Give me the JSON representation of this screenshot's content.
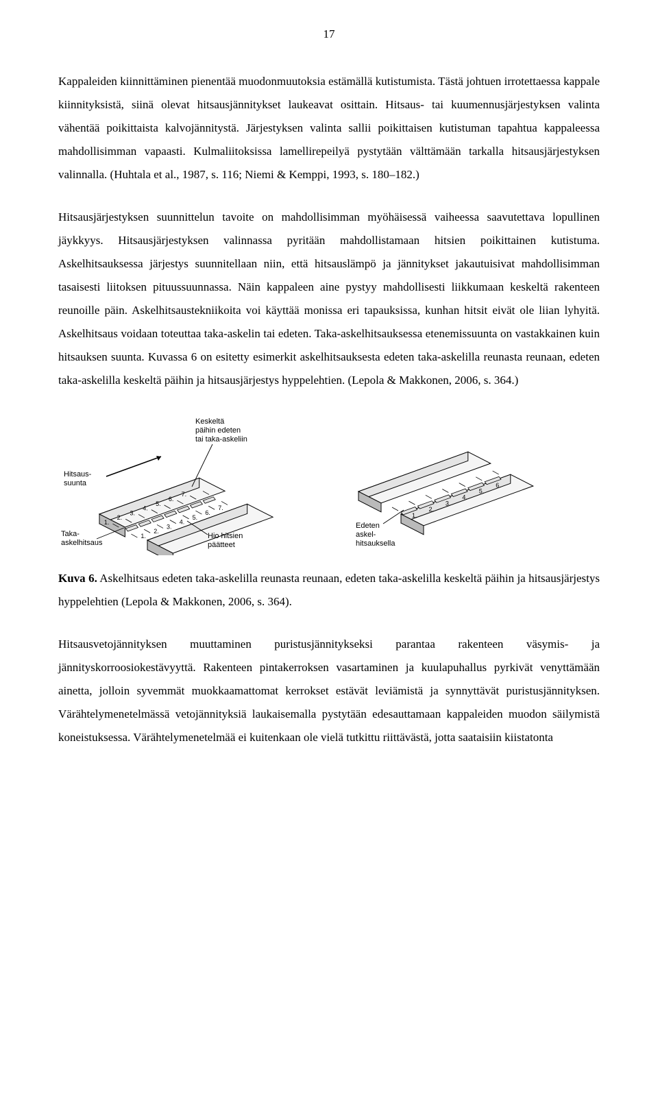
{
  "pageNumber": "17",
  "para1": "Kappaleiden kiinnittäminen pienentää muodonmuutoksia estämällä kutistumista. Tästä johtuen irrotettaessa kappale kiinnityksistä, siinä olevat hitsausjännitykset laukeavat osittain. Hitsaus- tai kuumennusjärjestyksen valinta vähentää poikittaista kalvojännitystä. Järjestyksen valinta sallii poikittaisen kutistuman tapahtua kappaleessa mahdollisimman vapaasti. Kulmaliitoksissa lamellirepeilyä pystytään välttämään tarkalla hitsausjärjestyksen valinnalla. (Huhtala et al., 1987, s. 116; Niemi & Kemppi, 1993, s. 180–182.)",
  "para2": "Hitsausjärjestyksen suunnittelun tavoite on mahdollisimman myöhäisessä vaiheessa saavutettava lopullinen jäykkyys. Hitsausjärjestyksen valinnassa pyritään mahdollistamaan hitsien poikittainen kutistuma. Askelhitsauksessa järjestys suunnitellaan niin, että hitsauslämpö ja jännitykset jakautuisivat mahdollisimman tasaisesti liitoksen pituussuunnassa. Näin kappaleen aine pystyy mahdollisesti liikkumaan keskeltä rakenteen reunoille päin. Askelhitsaustekniikoita voi käyttää monissa eri tapauksissa, kunhan hitsit eivät ole liian lyhyitä. Askelhitsaus voidaan toteuttaa taka-askelin tai edeten. Taka-askelhitsauksessa etenemissuunta on vastakkainen kuin hitsauksen suunta. Kuvassa 6 on esitetty esimerkit askelhitsauksesta edeten taka-askelilla reunasta reunaan, edeten taka-askelilla keskeltä päihin ja hitsausjärjestys hyppelehtien. (Lepola & Makkonen, 2006, s. 364.)",
  "caption6_bold": "Kuva 6.",
  "caption6_rest": " Askelhitsaus edeten taka-askelilla reunasta reunaan, edeten taka-askelilla keskeltä päihin ja hitsausjärjestys hyppelehtien (Lepola & Makkonen, 2006, s. 364).",
  "para3": "Hitsausvetojännityksen muuttaminen puristusjännitykseksi parantaa rakenteen väsymis- ja jännityskorroosiokestävyyttä. Rakenteen pintakerroksen vasartaminen ja kuulapuhallus pyrkivät venyttämään ainetta, jolloin syvemmät muokkaamattomat kerrokset estävät leviämistä ja synnyttävät puristusjännityksen. Värähtelymenetelmässä vetojännityksiä laukaisemalla pystytään edesauttamaan kappaleiden muodon säilymistä koneistuksessa. Värähtelymenetelmää ei kuitenkaan ole vielä tutkittu riittävästä, jotta saataisiin kiistatonta",
  "fig_left": {
    "label_top": "Keskeltä\npäihin edeten\ntai taka-askeliin",
    "label_left_top": "Hitsaus-\nsuunta",
    "label_left_bottom": "Taka-\naskelhitsaus",
    "label_bottom": "Hio hitsien\npäätteet",
    "stroke": "#000000",
    "fill_light": "#f5f5f5",
    "fill_mid": "#e4e4e4",
    "fill_dark": "#bababa",
    "text_color": "#000000",
    "numbers_left": [
      "1.",
      "2.",
      "3.",
      "4.",
      "5.",
      "6.",
      "7."
    ],
    "numbers_right": [
      "1.",
      "2.",
      "3.",
      "4.",
      "5.",
      "6.",
      "7."
    ],
    "font_size_label": 11,
    "font_size_num": 9
  },
  "fig_right": {
    "label_bottom": "Edeten\naskel-\nhitsauksella",
    "stroke": "#000000",
    "fill_light": "#f5f5f5",
    "fill_mid": "#e4e4e4",
    "fill_dark": "#bababa",
    "text_color": "#000000",
    "numbers": [
      "1.",
      "2.",
      "3.",
      "4.",
      "5.",
      "6."
    ],
    "font_size_label": 11,
    "font_size_num": 9
  }
}
